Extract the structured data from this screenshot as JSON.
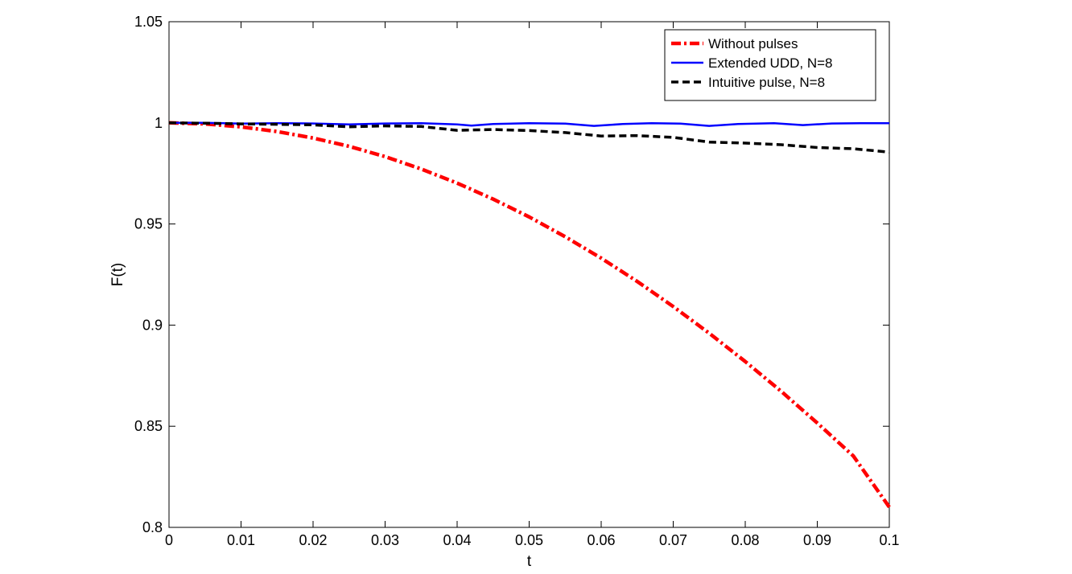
{
  "chart_data": {
    "type": "line",
    "title": "",
    "xlabel": "t",
    "ylabel": "F(t)",
    "xlim": [
      0,
      0.1
    ],
    "ylim": [
      0.8,
      1.05
    ],
    "xticks": [
      0,
      0.01,
      0.02,
      0.03,
      0.04,
      0.05,
      0.06,
      0.07,
      0.08,
      0.09,
      0.1
    ],
    "xtick_labels": [
      "0",
      "0.01",
      "0.02",
      "0.03",
      "0.04",
      "0.05",
      "0.06",
      "0.07",
      "0.08",
      "0.09",
      "0.1"
    ],
    "yticks": [
      0.8,
      0.85,
      0.9,
      0.95,
      1,
      1.05
    ],
    "ytick_labels": [
      "0.8",
      "0.85",
      "0.9",
      "0.95",
      "1",
      "1.05"
    ],
    "grid": false,
    "legend_position": "top-right",
    "series": [
      {
        "name": "Without pulses",
        "color": "#ff0000",
        "style": "dash-dot",
        "x": [
          0,
          0.005,
          0.01,
          0.015,
          0.02,
          0.025,
          0.03,
          0.035,
          0.04,
          0.045,
          0.05,
          0.055,
          0.06,
          0.065,
          0.07,
          0.075,
          0.08,
          0.085,
          0.09,
          0.095,
          0.1
        ],
        "y": [
          1.0,
          0.9995,
          0.998,
          0.9957,
          0.9925,
          0.9884,
          0.9833,
          0.9772,
          0.9702,
          0.9623,
          0.9535,
          0.9437,
          0.9331,
          0.9216,
          0.9092,
          0.896,
          0.882,
          0.8672,
          0.8516,
          0.8353,
          0.81
        ]
      },
      {
        "name": "Extended UDD, N=8",
        "color": "#0000ff",
        "style": "solid",
        "x": [
          0,
          0.005,
          0.01,
          0.015,
          0.02,
          0.025,
          0.03,
          0.035,
          0.04,
          0.042,
          0.045,
          0.05,
          0.055,
          0.059,
          0.063,
          0.067,
          0.071,
          0.075,
          0.079,
          0.084,
          0.088,
          0.092,
          0.096,
          0.1
        ],
        "y": [
          1.0,
          1.0,
          0.9996,
          0.9998,
          0.9997,
          0.9992,
          0.9997,
          0.9998,
          0.9992,
          0.9986,
          0.9994,
          0.9998,
          0.9996,
          0.9985,
          0.9994,
          0.9998,
          0.9996,
          0.9985,
          0.9994,
          0.9998,
          0.9989,
          0.9997,
          0.9998,
          0.9998
        ]
      },
      {
        "name": "Intuitive pulse, N=8",
        "color": "#000000",
        "style": "dashed",
        "x": [
          0,
          0.005,
          0.01,
          0.015,
          0.02,
          0.025,
          0.03,
          0.035,
          0.04,
          0.045,
          0.05,
          0.055,
          0.06,
          0.065,
          0.07,
          0.075,
          0.08,
          0.085,
          0.09,
          0.095,
          0.1
        ],
        "y": [
          1.0,
          0.9998,
          0.9995,
          0.9993,
          0.999,
          0.998,
          0.9985,
          0.9982,
          0.9963,
          0.9967,
          0.9962,
          0.9952,
          0.9935,
          0.9937,
          0.9928,
          0.9905,
          0.99,
          0.9892,
          0.9878,
          0.9872,
          0.9855
        ]
      }
    ]
  }
}
